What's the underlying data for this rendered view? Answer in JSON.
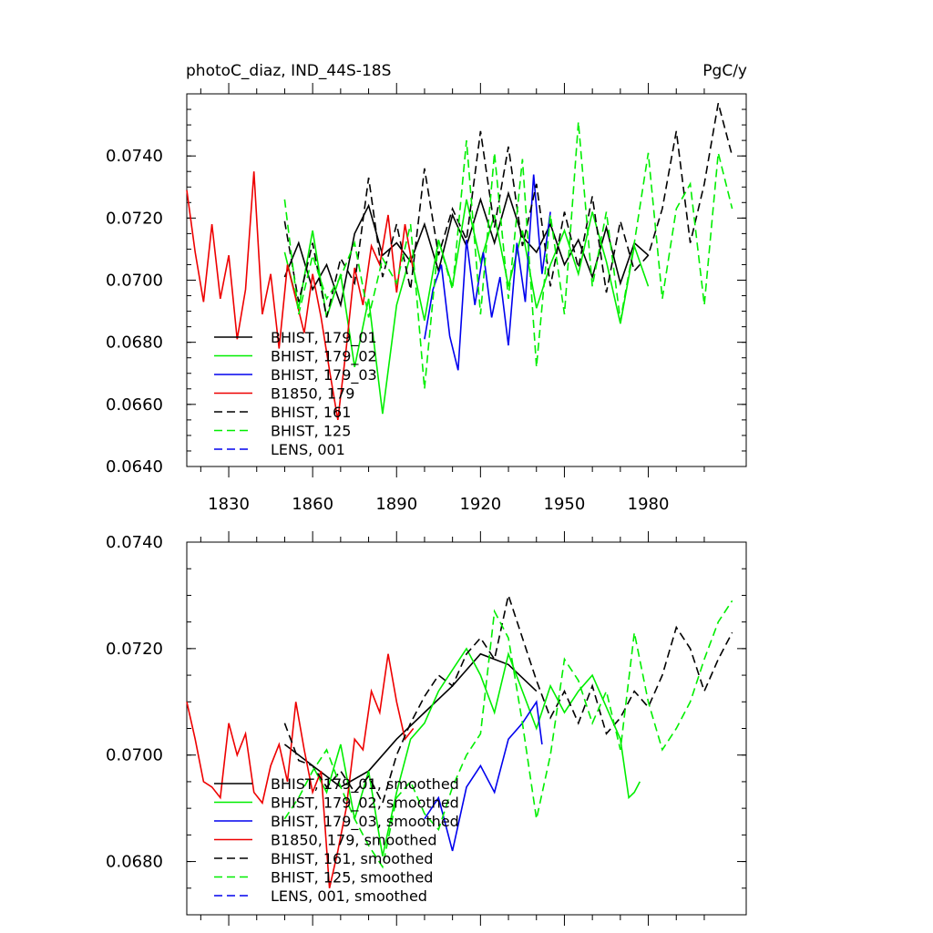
{
  "chart_data": [
    {
      "type": "line",
      "title": "photoC_diaz, IND_44S-18S",
      "units": "PgC/y",
      "xlim": [
        1815,
        2015
      ],
      "ylim": [
        0.064,
        0.076
      ],
      "xticks": [
        1830,
        1860,
        1890,
        1920,
        1950,
        1980
      ],
      "xtick_labels": [
        "1830",
        "1860",
        "1890",
        "1920",
        "1950",
        "1980"
      ],
      "yticks": [
        0.064,
        0.066,
        0.068,
        0.07,
        0.072,
        0.074
      ],
      "ytick_labels": [
        "0.0640",
        "0.0660",
        "0.0680",
        "0.0700",
        "0.0720",
        "0.0740"
      ],
      "legend_position": "bottom-left",
      "series": [
        {
          "name": "BHIST, 179_01",
          "color": "#000000",
          "dashed": false,
          "x": [
            1850,
            1855,
            1860,
            1865,
            1870,
            1875,
            1880,
            1885,
            1890,
            1895,
            1900,
            1905,
            1910,
            1915,
            1920,
            1925,
            1930,
            1935,
            1940,
            1945,
            1950,
            1955,
            1960,
            1965,
            1970,
            1975,
            1980
          ],
          "y": [
            0.0701,
            0.0712,
            0.0697,
            0.0705,
            0.0692,
            0.0715,
            0.0724,
            0.0708,
            0.0712,
            0.0706,
            0.0718,
            0.0703,
            0.0721,
            0.0711,
            0.0726,
            0.0712,
            0.0728,
            0.0714,
            0.0709,
            0.0718,
            0.0705,
            0.0713,
            0.0701,
            0.0717,
            0.0699,
            0.0712,
            0.0708
          ]
        },
        {
          "name": "BHIST, 179_02",
          "color": "#00ee00",
          "dashed": false,
          "x": [
            1850,
            1855,
            1860,
            1865,
            1870,
            1875,
            1880,
            1885,
            1890,
            1895,
            1900,
            1905,
            1910,
            1915,
            1920,
            1925,
            1930,
            1935,
            1940,
            1945,
            1950,
            1955,
            1960,
            1965,
            1970,
            1975,
            1980
          ],
          "y": [
            0.0709,
            0.0691,
            0.0716,
            0.0688,
            0.0702,
            0.0672,
            0.0694,
            0.0657,
            0.0692,
            0.0708,
            0.0687,
            0.0713,
            0.0698,
            0.0726,
            0.0706,
            0.0721,
            0.0698,
            0.0716,
            0.0691,
            0.0705,
            0.0716,
            0.0702,
            0.0722,
            0.0706,
            0.0686,
            0.0711,
            0.0698
          ]
        },
        {
          "name": "BHIST, 179_03",
          "color": "#0000ee",
          "dashed": false,
          "x": [
            1900,
            1903,
            1906,
            1909,
            1912,
            1915,
            1918,
            1921,
            1924,
            1927,
            1930,
            1933,
            1936,
            1939,
            1942,
            1945
          ],
          "y": [
            0.0681,
            0.0697,
            0.0705,
            0.0682,
            0.0671,
            0.0713,
            0.0692,
            0.0709,
            0.0688,
            0.0701,
            0.0679,
            0.0712,
            0.0693,
            0.0734,
            0.0702,
            0.0722
          ]
        },
        {
          "name": "B1850, 179",
          "color": "#ee0000",
          "dashed": false,
          "x": [
            1815,
            1818,
            1821,
            1824,
            1827,
            1830,
            1833,
            1836,
            1839,
            1842,
            1845,
            1848,
            1851,
            1854,
            1857,
            1860,
            1863,
            1866,
            1869,
            1872,
            1875,
            1878,
            1881,
            1884,
            1887,
            1890,
            1893,
            1896
          ],
          "y": [
            0.0729,
            0.0709,
            0.0693,
            0.0718,
            0.0694,
            0.0708,
            0.0681,
            0.0697,
            0.0735,
            0.0689,
            0.0702,
            0.0678,
            0.0705,
            0.0694,
            0.0683,
            0.0702,
            0.0688,
            0.0671,
            0.0655,
            0.0678,
            0.0704,
            0.0692,
            0.0711,
            0.0705,
            0.0721,
            0.0696,
            0.0718,
            0.0703
          ]
        },
        {
          "name": "BHIST, 161",
          "color": "#000000",
          "dashed": true,
          "x": [
            1850,
            1855,
            1860,
            1865,
            1870,
            1875,
            1880,
            1885,
            1890,
            1895,
            1900,
            1905,
            1910,
            1915,
            1920,
            1925,
            1930,
            1935,
            1940,
            1945,
            1950,
            1955,
            1960,
            1965,
            1970,
            1975,
            1980,
            1985,
            1990,
            1995,
            2000,
            2005,
            2010
          ],
          "y": [
            0.0719,
            0.0693,
            0.0712,
            0.0688,
            0.0707,
            0.0699,
            0.0733,
            0.0701,
            0.0718,
            0.0697,
            0.0736,
            0.0708,
            0.0723,
            0.0713,
            0.0748,
            0.0717,
            0.0743,
            0.0711,
            0.0731,
            0.0698,
            0.0722,
            0.0704,
            0.0727,
            0.0696,
            0.0719,
            0.0703,
            0.0708,
            0.0723,
            0.0748,
            0.0712,
            0.0731,
            0.0757,
            0.074
          ]
        },
        {
          "name": "BHIST, 125",
          "color": "#00ee00",
          "dashed": true,
          "x": [
            1850,
            1855,
            1860,
            1865,
            1870,
            1875,
            1880,
            1885,
            1890,
            1895,
            1900,
            1905,
            1910,
            1915,
            1920,
            1925,
            1930,
            1935,
            1940,
            1945,
            1950,
            1955,
            1960,
            1965,
            1970,
            1975,
            1980,
            1985,
            1990,
            1995,
            2000,
            2005,
            2010
          ],
          "y": [
            0.0726,
            0.0689,
            0.0708,
            0.0694,
            0.0701,
            0.0712,
            0.0688,
            0.0707,
            0.0699,
            0.0718,
            0.0665,
            0.0713,
            0.0697,
            0.0745,
            0.0689,
            0.0741,
            0.0694,
            0.0739,
            0.0672,
            0.0721,
            0.0689,
            0.0751,
            0.0698,
            0.0722,
            0.0687,
            0.0712,
            0.0741,
            0.0694,
            0.0723,
            0.0731,
            0.0692,
            0.0741,
            0.0723
          ]
        },
        {
          "name": "LENS, 001",
          "color": "#0000ee",
          "dashed": true,
          "x": [],
          "y": []
        }
      ]
    },
    {
      "type": "line",
      "title": "",
      "xlim": [
        1815,
        2015
      ],
      "ylim": [
        0.067,
        0.074
      ],
      "xticks": [
        1830,
        1860,
        1890,
        1920,
        1950,
        1980
      ],
      "yticks": [
        0.068,
        0.07,
        0.072,
        0.074
      ],
      "ytick_labels": [
        "0.0680",
        "0.0700",
        "0.0720",
        "0.0740"
      ],
      "legend_position": "bottom-left",
      "series": [
        {
          "name": "BHIST, 179_01, smoothed",
          "color": "#000000",
          "dashed": false,
          "x": [
            1850,
            1860,
            1870,
            1880,
            1890,
            1900,
            1910,
            1920,
            1930,
            1940
          ],
          "y": [
            0.0702,
            0.0698,
            0.0694,
            0.0697,
            0.0703,
            0.0708,
            0.0713,
            0.0719,
            0.0717,
            0.0712
          ]
        },
        {
          "name": "BHIST, 179_02, smoothed",
          "color": "#00ee00",
          "dashed": false,
          "x": [
            1860,
            1865,
            1870,
            1875,
            1880,
            1885,
            1890,
            1895,
            1900,
            1905,
            1910,
            1915,
            1920,
            1925,
            1930,
            1935,
            1940,
            1945,
            1950,
            1955,
            1960,
            1965,
            1970,
            1973,
            1975,
            1977
          ],
          "y": [
            0.0698,
            0.0693,
            0.0702,
            0.0688,
            0.0697,
            0.0681,
            0.0693,
            0.0703,
            0.0706,
            0.0712,
            0.0716,
            0.072,
            0.0715,
            0.0708,
            0.0719,
            0.0712,
            0.0705,
            0.0713,
            0.0708,
            0.0712,
            0.0715,
            0.0709,
            0.0703,
            0.0692,
            0.0693,
            0.0695
          ]
        },
        {
          "name": "BHIST, 179_03, smoothed",
          "color": "#0000ee",
          "dashed": false,
          "x": [
            1900,
            1905,
            1910,
            1915,
            1920,
            1925,
            1930,
            1935,
            1940,
            1942
          ],
          "y": [
            0.0688,
            0.0692,
            0.0682,
            0.0694,
            0.0698,
            0.0693,
            0.0703,
            0.0706,
            0.071,
            0.0702
          ]
        },
        {
          "name": "B1850, 179, smoothed",
          "color": "#ee0000",
          "dashed": false,
          "x": [
            1815,
            1818,
            1821,
            1824,
            1827,
            1830,
            1833,
            1836,
            1839,
            1842,
            1845,
            1848,
            1851,
            1854,
            1857,
            1860,
            1863,
            1866,
            1869,
            1872,
            1875,
            1878,
            1881,
            1884,
            1887,
            1890,
            1893,
            1896
          ],
          "y": [
            0.071,
            0.0703,
            0.0695,
            0.0694,
            0.0692,
            0.0706,
            0.07,
            0.0704,
            0.0693,
            0.0691,
            0.0698,
            0.0702,
            0.0695,
            0.071,
            0.0701,
            0.0693,
            0.0697,
            0.0675,
            0.0682,
            0.069,
            0.0703,
            0.0701,
            0.0712,
            0.0708,
            0.0719,
            0.071,
            0.0703,
            0.0705
          ]
        },
        {
          "name": "BHIST, 161, smoothed",
          "color": "#000000",
          "dashed": true,
          "x": [
            1850,
            1855,
            1860,
            1865,
            1870,
            1875,
            1880,
            1885,
            1890,
            1895,
            1900,
            1905,
            1910,
            1915,
            1920,
            1925,
            1930,
            1935,
            1940,
            1945,
            1950,
            1955,
            1960,
            1965,
            1970,
            1975,
            1980,
            1985,
            1990,
            1995,
            2000,
            2005,
            2010
          ],
          "y": [
            0.0706,
            0.0699,
            0.0698,
            0.0694,
            0.0697,
            0.0693,
            0.0696,
            0.0691,
            0.07,
            0.0706,
            0.0711,
            0.0715,
            0.0713,
            0.0719,
            0.0722,
            0.0718,
            0.073,
            0.0722,
            0.0714,
            0.0707,
            0.0712,
            0.0706,
            0.0713,
            0.0704,
            0.0707,
            0.0712,
            0.0709,
            0.0715,
            0.0724,
            0.072,
            0.0712,
            0.0718,
            0.0723
          ]
        },
        {
          "name": "BHIST, 125, smoothed",
          "color": "#00ee00",
          "dashed": true,
          "x": [
            1850,
            1855,
            1860,
            1865,
            1870,
            1875,
            1880,
            1885,
            1890,
            1895,
            1900,
            1905,
            1910,
            1915,
            1920,
            1925,
            1930,
            1935,
            1940,
            1945,
            1950,
            1955,
            1960,
            1965,
            1970,
            1975,
            1980,
            1985,
            1990,
            1995,
            2000,
            2005,
            2010
          ],
          "y": [
            0.0688,
            0.0692,
            0.0697,
            0.0701,
            0.0694,
            0.0688,
            0.0683,
            0.0679,
            0.0692,
            0.0695,
            0.0689,
            0.0686,
            0.0694,
            0.07,
            0.0704,
            0.0727,
            0.0722,
            0.0706,
            0.0688,
            0.07,
            0.0718,
            0.0714,
            0.0706,
            0.0712,
            0.0701,
            0.0723,
            0.071,
            0.0701,
            0.0705,
            0.071,
            0.0718,
            0.0725,
            0.0729
          ]
        },
        {
          "name": "LENS, 001, smoothed",
          "color": "#0000ee",
          "dashed": true,
          "x": [],
          "y": []
        }
      ]
    }
  ]
}
